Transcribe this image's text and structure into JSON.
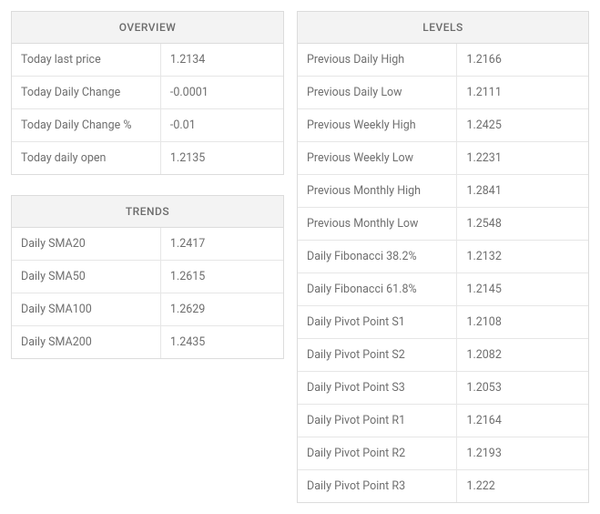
{
  "overview": {
    "title": "OVERVIEW",
    "rows": [
      {
        "label": "Today last price",
        "value": "1.2134"
      },
      {
        "label": "Today Daily Change",
        "value": "-0.0001"
      },
      {
        "label": "Today Daily Change %",
        "value": "-0.01"
      },
      {
        "label": "Today daily open",
        "value": "1.2135"
      }
    ]
  },
  "trends": {
    "title": "TRENDS",
    "rows": [
      {
        "label": "Daily SMA20",
        "value": "1.2417"
      },
      {
        "label": "Daily SMA50",
        "value": "1.2615"
      },
      {
        "label": "Daily SMA100",
        "value": "1.2629"
      },
      {
        "label": "Daily SMA200",
        "value": "1.2435"
      }
    ]
  },
  "levels": {
    "title": "LEVELS",
    "rows": [
      {
        "label": "Previous Daily High",
        "value": "1.2166"
      },
      {
        "label": "Previous Daily Low",
        "value": "1.2111"
      },
      {
        "label": "Previous Weekly High",
        "value": "1.2425"
      },
      {
        "label": "Previous Weekly Low",
        "value": "1.2231"
      },
      {
        "label": "Previous Monthly High",
        "value": "1.2841"
      },
      {
        "label": "Previous Monthly Low",
        "value": "1.2548"
      },
      {
        "label": "Daily Fibonacci 38.2%",
        "value": "1.2132"
      },
      {
        "label": "Daily Fibonacci 61.8%",
        "value": "1.2145"
      },
      {
        "label": "Daily Pivot Point S1",
        "value": "1.2108"
      },
      {
        "label": "Daily Pivot Point S2",
        "value": "1.2082"
      },
      {
        "label": "Daily Pivot Point S3",
        "value": "1.2053"
      },
      {
        "label": "Daily Pivot Point R1",
        "value": "1.2164"
      },
      {
        "label": "Daily Pivot Point R2",
        "value": "1.2193"
      },
      {
        "label": "Daily Pivot Point R3",
        "value": "1.222"
      }
    ]
  },
  "style": {
    "border_color": "#dcdcdc",
    "row_border_color": "#e6e6e6",
    "header_bg": "#f3f3f3",
    "text_color": "#6f6f6f",
    "header_text_color": "#6b6b6b",
    "font_size_header": 12,
    "font_size_cell": 12.5,
    "background": "#ffffff"
  }
}
